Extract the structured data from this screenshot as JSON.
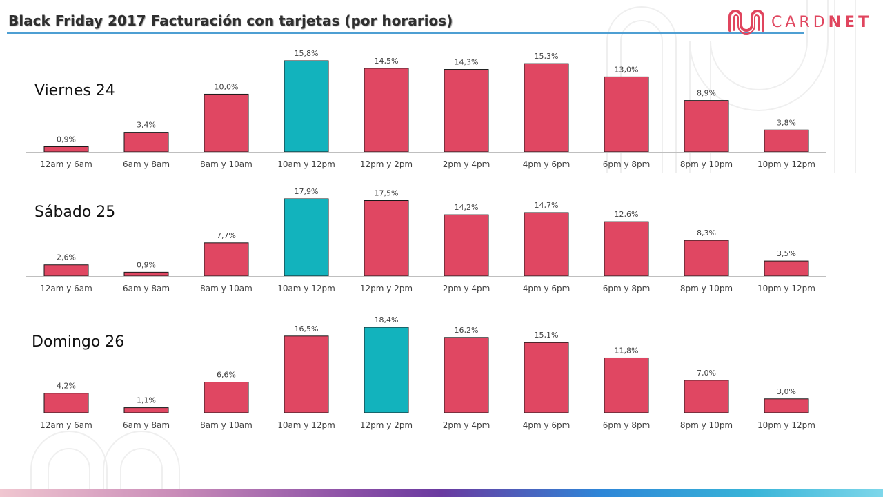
{
  "title": "Black Friday 2017 Facturación con tarjetas (por horarios)",
  "logo": {
    "text_part1": "CARD",
    "text_part2": "NET",
    "icon": "cardnet-logo-icon"
  },
  "colors": {
    "bar": "#e04762",
    "highlight": "#12b3bd",
    "title_line": "#4e9fd3"
  },
  "chart_data": [
    {
      "type": "bar",
      "title": "Viernes 24",
      "categories": [
        "12am y 6am",
        "6am y 8am",
        "8am y 10am",
        "10am y 12pm",
        "12pm y 2pm",
        "2pm y  4pm",
        "4pm y 6pm",
        "6pm y 8pm",
        "8pm y 10pm",
        "10pm y 12pm"
      ],
      "values": [
        0.9,
        3.4,
        10.0,
        15.8,
        14.5,
        14.3,
        15.3,
        13.0,
        8.9,
        3.8
      ],
      "labels": [
        "0,9%",
        "3,4%",
        "10,0%",
        "15,8%",
        "14,5%",
        "14,3%",
        "15,3%",
        "13,0%",
        "8,9%",
        "3,8%"
      ],
      "highlight_index": 3,
      "ylim": [
        0,
        15.8
      ]
    },
    {
      "type": "bar",
      "title": "Sábado 25",
      "categories": [
        "12am y 6am",
        "6am y 8am",
        "8am y 10am",
        "10am y 12pm",
        "12pm y 2pm",
        "2pm y  4pm",
        "4pm y 6pm",
        "6pm y 8pm",
        "8pm y 10pm",
        "10pm y 12pm"
      ],
      "values": [
        2.6,
        0.9,
        7.7,
        17.9,
        17.5,
        14.2,
        14.7,
        12.6,
        8.3,
        3.5
      ],
      "labels": [
        "2,6%",
        "0,9%",
        "7,7%",
        "17,9%",
        "17,5%",
        "14,2%",
        "14,7%",
        "12,6%",
        "8,3%",
        "3,5%"
      ],
      "highlight_index": 3,
      "ylim": [
        0,
        17.9
      ]
    },
    {
      "type": "bar",
      "title": "Domingo 26",
      "categories": [
        "12am y 6am",
        "6am y 8am",
        "8am y 10am",
        "10am y 12pm",
        "12pm y 2pm",
        "2pm y  4pm",
        "4pm y 6pm",
        "6pm y 8pm",
        "8pm y 10pm",
        "10pm y 12pm"
      ],
      "values": [
        4.2,
        1.1,
        6.6,
        16.5,
        18.4,
        16.2,
        15.1,
        11.8,
        7.0,
        3.0
      ],
      "labels": [
        "4,2%",
        "1,1%",
        "6,6%",
        "16,5%",
        "18,4%",
        "16,2%",
        "15,1%",
        "11,8%",
        "7,0%",
        "3,0%"
      ],
      "highlight_index": 4,
      "ylim": [
        0,
        18.4
      ]
    }
  ]
}
